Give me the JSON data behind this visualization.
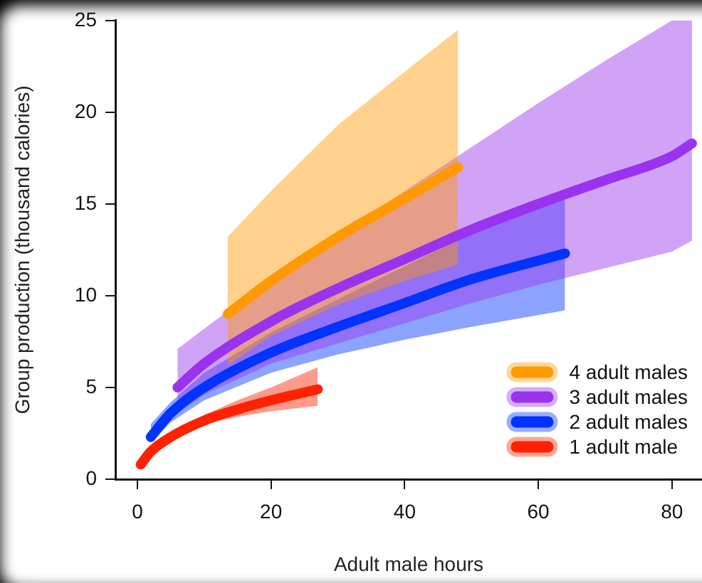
{
  "chart_data": {
    "type": "line",
    "xlabel": "Adult male hours",
    "ylabel": "Group production (thousand calories)",
    "xlim": [
      -3.3,
      84.5
    ],
    "ylim": [
      0,
      25
    ],
    "xticks": [
      0,
      20,
      40,
      60,
      80
    ],
    "yticks": [
      0,
      5,
      10,
      15,
      20,
      25
    ],
    "grid": false,
    "legend": "bottom right",
    "marker": "none",
    "line_style": "solid",
    "series": [
      {
        "name": "4 adult males",
        "color": "#ff9900",
        "x": [
          13.5,
          20,
          30,
          40,
          48
        ],
        "values": [
          9.0,
          10.8,
          13.2,
          15.3,
          17.0
        ],
        "lower": [
          6.2,
          7.8,
          9.5,
          10.8,
          11.7
        ],
        "upper": [
          13.2,
          15.7,
          19.3,
          22.2,
          24.5
        ]
      },
      {
        "name": "3 adult males",
        "color": "#9933ee",
        "x": [
          6,
          10,
          20,
          30,
          40,
          50,
          60,
          70,
          80,
          83
        ],
        "values": [
          5.0,
          6.3,
          8.6,
          10.4,
          12.0,
          13.6,
          15.0,
          16.3,
          17.6,
          18.3
        ],
        "lower": [
          3.6,
          4.6,
          6.3,
          7.4,
          8.5,
          9.6,
          10.6,
          11.5,
          12.4,
          13.0
        ],
        "upper": [
          7.1,
          8.2,
          10.9,
          13.3,
          15.7,
          18.1,
          20.5,
          22.8,
          25.0,
          25.0
        ]
      },
      {
        "name": "2 adult males",
        "color": "#0033ff",
        "x": [
          2,
          5,
          10,
          20,
          30,
          40,
          50,
          64
        ],
        "values": [
          2.3,
          3.6,
          5.0,
          6.9,
          8.3,
          9.6,
          10.9,
          12.3
        ],
        "lower": [
          2.0,
          3.1,
          4.3,
          5.8,
          6.8,
          7.6,
          8.3,
          9.2
        ],
        "upper": [
          3.0,
          4.2,
          5.8,
          8.0,
          9.8,
          11.6,
          13.4,
          15.8
        ]
      },
      {
        "name": "1 adult male",
        "color": "#ff2200",
        "x": [
          0.5,
          2,
          5,
          10,
          15,
          20,
          27
        ],
        "values": [
          0.8,
          1.5,
          2.3,
          3.2,
          3.8,
          4.3,
          4.9
        ],
        "lower": [
          0.7,
          1.4,
          2.2,
          3.0,
          3.4,
          3.7,
          4.0
        ],
        "upper": [
          0.9,
          1.6,
          2.4,
          3.5,
          4.3,
          5.0,
          6.1
        ]
      }
    ]
  }
}
